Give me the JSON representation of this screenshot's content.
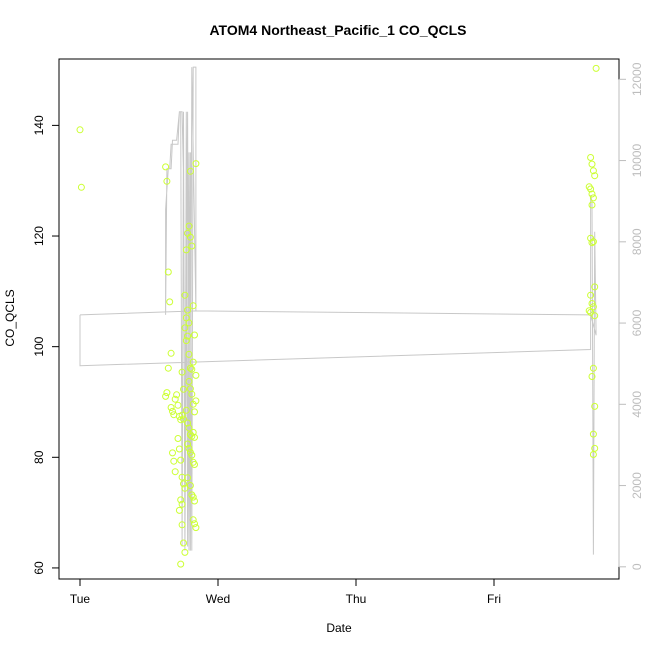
{
  "chart_data": {
    "type": "scatter",
    "title": "ATOM4 Northeast_Pacific_1 CO_QCLS",
    "xlabel": "Date",
    "ylabel": "CO_QCLS",
    "x_ticks": [
      "Tue",
      "Wed",
      "Thu",
      "Fri"
    ],
    "ylim": [
      58,
      152
    ],
    "y_ticks": [
      60,
      80,
      100,
      120,
      140
    ],
    "y2lim": [
      -300,
      12500
    ],
    "y2_ticks": [
      0,
      2000,
      4000,
      6000,
      8000,
      10000,
      12000
    ],
    "grid": false,
    "colors": {
      "points": "#ccff33",
      "line": "#c8c8c8",
      "right_axis": "#bdbdbd"
    },
    "series": [
      {
        "type": "scatter",
        "axis": "left",
        "points": [
          [
            0.0,
            139.2
          ],
          [
            0.01,
            128.8
          ],
          [
            0.62,
            132.5
          ],
          [
            0.63,
            129.9
          ],
          [
            0.64,
            113.5
          ],
          [
            0.65,
            108.1
          ],
          [
            0.66,
            98.8
          ],
          [
            0.64,
            96.1
          ],
          [
            0.63,
            91.7
          ],
          [
            0.62,
            91.0
          ],
          [
            0.66,
            89.0
          ],
          [
            0.67,
            88.3
          ],
          [
            0.68,
            87.7
          ],
          [
            0.69,
            90.5
          ],
          [
            0.7,
            91.3
          ],
          [
            0.71,
            89.4
          ],
          [
            0.72,
            87.4
          ],
          [
            0.73,
            86.8
          ],
          [
            0.74,
            87.6
          ],
          [
            0.75,
            86.9
          ],
          [
            0.67,
            80.8
          ],
          [
            0.68,
            79.3
          ],
          [
            0.69,
            77.4
          ],
          [
            0.71,
            83.4
          ],
          [
            0.72,
            81.5
          ],
          [
            0.73,
            79.5
          ],
          [
            0.74,
            76.4
          ],
          [
            0.75,
            75.2
          ],
          [
            0.76,
            74.4
          ],
          [
            0.73,
            72.3
          ],
          [
            0.74,
            71.5
          ],
          [
            0.72,
            70.4
          ],
          [
            0.74,
            67.8
          ],
          [
            0.75,
            64.5
          ],
          [
            0.76,
            62.8
          ],
          [
            0.73,
            60.7
          ],
          [
            0.74,
            95.4
          ],
          [
            0.75,
            92.3
          ],
          [
            0.76,
            109.3
          ],
          [
            0.77,
            117.5
          ],
          [
            0.78,
            120.5
          ],
          [
            0.79,
            121.8
          ],
          [
            0.8,
            119.8
          ],
          [
            0.81,
            118.2
          ],
          [
            0.77,
            105.2
          ],
          [
            0.78,
            101.9
          ],
          [
            0.79,
            98.6
          ],
          [
            0.8,
            96.1
          ],
          [
            0.81,
            95.9
          ],
          [
            0.82,
            97.2
          ],
          [
            0.79,
            93.7
          ],
          [
            0.8,
            92.4
          ],
          [
            0.81,
            91.4
          ],
          [
            0.82,
            89.6
          ],
          [
            0.83,
            88.2
          ],
          [
            0.84,
            90.2
          ],
          [
            0.77,
            88.5
          ],
          [
            0.78,
            86.2
          ],
          [
            0.79,
            85.3
          ],
          [
            0.8,
            84.1
          ],
          [
            0.81,
            83.8
          ],
          [
            0.82,
            84.5
          ],
          [
            0.83,
            83.6
          ],
          [
            0.78,
            82.4
          ],
          [
            0.79,
            81.6
          ],
          [
            0.8,
            80.9
          ],
          [
            0.81,
            80.4
          ],
          [
            0.82,
            79.1
          ],
          [
            0.83,
            78.7
          ],
          [
            0.78,
            76.3
          ],
          [
            0.8,
            74.9
          ],
          [
            0.81,
            73.2
          ],
          [
            0.82,
            72.8
          ],
          [
            0.83,
            72.1
          ],
          [
            0.82,
            68.7
          ],
          [
            0.83,
            68.0
          ],
          [
            0.84,
            67.3
          ],
          [
            0.8,
            131.7
          ],
          [
            0.84,
            133.1
          ],
          [
            0.83,
            102.1
          ],
          [
            0.84,
            94.8
          ],
          [
            0.82,
            107.4
          ],
          [
            0.76,
            103.4
          ],
          [
            0.77,
            101.1
          ],
          [
            0.78,
            106.6
          ],
          [
            0.79,
            104.3
          ],
          [
            3.7,
            134.2
          ],
          [
            3.71,
            133.0
          ],
          [
            3.72,
            131.8
          ],
          [
            3.73,
            130.9
          ],
          [
            3.69,
            128.9
          ],
          [
            3.7,
            128.5
          ],
          [
            3.71,
            127.6
          ],
          [
            3.72,
            126.9
          ],
          [
            3.71,
            125.6
          ],
          [
            3.7,
            119.6
          ],
          [
            3.71,
            118.8
          ],
          [
            3.72,
            119.0
          ],
          [
            3.73,
            110.8
          ],
          [
            3.7,
            109.3
          ],
          [
            3.71,
            107.8
          ],
          [
            3.72,
            107.2
          ],
          [
            3.69,
            106.5
          ],
          [
            3.7,
            106.2
          ],
          [
            3.73,
            105.6
          ],
          [
            3.71,
            94.6
          ],
          [
            3.72,
            96.1
          ],
          [
            3.73,
            89.2
          ],
          [
            3.72,
            84.2
          ],
          [
            3.73,
            81.6
          ],
          [
            3.72,
            80.5
          ],
          [
            3.74,
            150.3
          ]
        ]
      },
      {
        "type": "line",
        "axis": "right",
        "points": [
          [
            0.0,
            6200
          ],
          [
            0.0,
            4950
          ],
          [
            3.7,
            5350
          ],
          [
            3.7,
            9150
          ],
          [
            3.71,
            9000
          ],
          [
            3.72,
            300
          ],
          [
            3.73,
            8250
          ],
          [
            3.74,
            5700
          ],
          [
            3.7,
            6200
          ],
          [
            0.84,
            6300
          ],
          [
            0.84,
            12300
          ],
          [
            0.82,
            12300
          ],
          [
            0.81,
            400
          ],
          [
            0.8,
            10200
          ],
          [
            0.79,
            400
          ],
          [
            0.78,
            11200
          ],
          [
            0.76,
            400
          ],
          [
            0.75,
            11200
          ],
          [
            0.74,
            500
          ],
          [
            0.73,
            11200
          ],
          [
            0.72,
            11200
          ],
          [
            0.71,
            10400
          ],
          [
            0.66,
            10400
          ],
          [
            0.65,
            9800
          ],
          [
            0.63,
            9800
          ],
          [
            0.62,
            6200
          ],
          [
            0.62,
            8800
          ],
          [
            0.64,
            9800
          ],
          [
            0.66,
            9800
          ],
          [
            0.67,
            10500
          ],
          [
            0.7,
            10500
          ],
          [
            0.72,
            11200
          ],
          [
            0.74,
            11200
          ],
          [
            0.75,
            9600
          ],
          [
            0.76,
            500
          ],
          [
            0.77,
            11200
          ],
          [
            0.78,
            500
          ],
          [
            0.79,
            10200
          ],
          [
            0.8,
            400
          ],
          [
            0.81,
            12300
          ],
          [
            0.84,
            6300
          ],
          [
            0.0,
            6200
          ]
        ]
      }
    ]
  }
}
